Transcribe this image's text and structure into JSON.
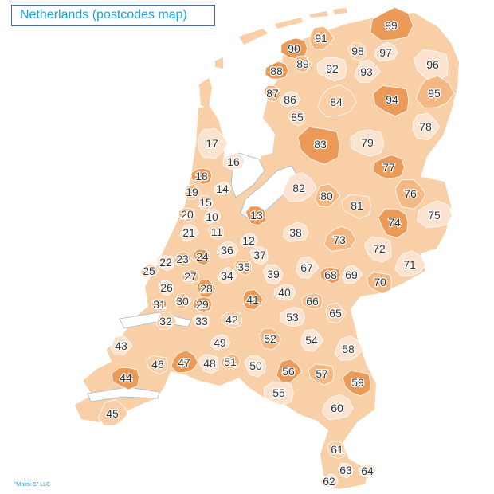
{
  "title": "Netherlands (postcodes map)",
  "credit": "\"Maksi-S\" LLC",
  "colors": {
    "light": "#fce3cf",
    "mid": "#f8cfa6",
    "medium": "#f4b884",
    "dark": "#ec9a58",
    "border": "#ffffff",
    "label": "#333333",
    "title_text": "#1aa3e8",
    "title_border": "#4a6fa5"
  },
  "regions": [
    {
      "code": "99",
      "shade": "dark"
    },
    {
      "code": "91",
      "shade": "medium"
    },
    {
      "code": "90",
      "shade": "dark"
    },
    {
      "code": "98",
      "shade": "mid"
    },
    {
      "code": "97",
      "shade": "light"
    },
    {
      "code": "96",
      "shade": "light"
    },
    {
      "code": "89",
      "shade": "medium"
    },
    {
      "code": "92",
      "shade": "light"
    },
    {
      "code": "93",
      "shade": "light"
    },
    {
      "code": "88",
      "shade": "dark"
    },
    {
      "code": "87",
      "shade": "medium"
    },
    {
      "code": "86",
      "shade": "light"
    },
    {
      "code": "84",
      "shade": "mid"
    },
    {
      "code": "94",
      "shade": "dark"
    },
    {
      "code": "95",
      "shade": "medium"
    },
    {
      "code": "85",
      "shade": "mid"
    },
    {
      "code": "78",
      "shade": "light"
    },
    {
      "code": "83",
      "shade": "dark"
    },
    {
      "code": "79",
      "shade": "light"
    },
    {
      "code": "17",
      "shade": "light"
    },
    {
      "code": "16",
      "shade": "light"
    },
    {
      "code": "77",
      "shade": "dark"
    },
    {
      "code": "18",
      "shade": "dark"
    },
    {
      "code": "14",
      "shade": "light"
    },
    {
      "code": "82",
      "shade": "light"
    },
    {
      "code": "80",
      "shade": "medium"
    },
    {
      "code": "76",
      "shade": "medium"
    },
    {
      "code": "19",
      "shade": "medium"
    },
    {
      "code": "15",
      "shade": "mid"
    },
    {
      "code": "81",
      "shade": "mid"
    },
    {
      "code": "75",
      "shade": "light"
    },
    {
      "code": "20",
      "shade": "medium"
    },
    {
      "code": "10",
      "shade": "light"
    },
    {
      "code": "13",
      "shade": "dark"
    },
    {
      "code": "74",
      "shade": "dark"
    },
    {
      "code": "21",
      "shade": "light"
    },
    {
      "code": "11",
      "shade": "mid"
    },
    {
      "code": "38",
      "shade": "light"
    },
    {
      "code": "73",
      "shade": "medium"
    },
    {
      "code": "12",
      "shade": "light"
    },
    {
      "code": "72",
      "shade": "light"
    },
    {
      "code": "22",
      "shade": "light"
    },
    {
      "code": "23",
      "shade": "medium"
    },
    {
      "code": "24",
      "shade": "dark"
    },
    {
      "code": "36",
      "shade": "light"
    },
    {
      "code": "37",
      "shade": "light"
    },
    {
      "code": "71",
      "shade": "light"
    },
    {
      "code": "25",
      "shade": "mid"
    },
    {
      "code": "35",
      "shade": "medium"
    },
    {
      "code": "67",
      "shade": "light"
    },
    {
      "code": "27",
      "shade": "medium"
    },
    {
      "code": "34",
      "shade": "light"
    },
    {
      "code": "39",
      "shade": "light"
    },
    {
      "code": "68",
      "shade": "dark"
    },
    {
      "code": "69",
      "shade": "light"
    },
    {
      "code": "70",
      "shade": "medium"
    },
    {
      "code": "26",
      "shade": "light"
    },
    {
      "code": "28",
      "shade": "dark"
    },
    {
      "code": "40",
      "shade": "light"
    },
    {
      "code": "31",
      "shade": "dark"
    },
    {
      "code": "30",
      "shade": "medium"
    },
    {
      "code": "41",
      "shade": "dark"
    },
    {
      "code": "66",
      "shade": "medium"
    },
    {
      "code": "29",
      "shade": "dark"
    },
    {
      "code": "65",
      "shade": "mid"
    },
    {
      "code": "32",
      "shade": "mid"
    },
    {
      "code": "33",
      "shade": "light"
    },
    {
      "code": "42",
      "shade": "mid"
    },
    {
      "code": "53",
      "shade": "light"
    },
    {
      "code": "43",
      "shade": "light"
    },
    {
      "code": "49",
      "shade": "light"
    },
    {
      "code": "52",
      "shade": "medium"
    },
    {
      "code": "54",
      "shade": "light"
    },
    {
      "code": "58",
      "shade": "light"
    },
    {
      "code": "46",
      "shade": "mid"
    },
    {
      "code": "47",
      "shade": "dark"
    },
    {
      "code": "48",
      "shade": "light"
    },
    {
      "code": "51",
      "shade": "medium"
    },
    {
      "code": "50",
      "shade": "light"
    },
    {
      "code": "56",
      "shade": "dark"
    },
    {
      "code": "57",
      "shade": "medium"
    },
    {
      "code": "44",
      "shade": "dark"
    },
    {
      "code": "59",
      "shade": "dark"
    },
    {
      "code": "55",
      "shade": "light"
    },
    {
      "code": "45",
      "shade": "mid"
    },
    {
      "code": "60",
      "shade": "light"
    },
    {
      "code": "61",
      "shade": "mid"
    },
    {
      "code": "63",
      "shade": "light"
    },
    {
      "code": "64",
      "shade": "light"
    },
    {
      "code": "62",
      "shade": "light"
    }
  ]
}
